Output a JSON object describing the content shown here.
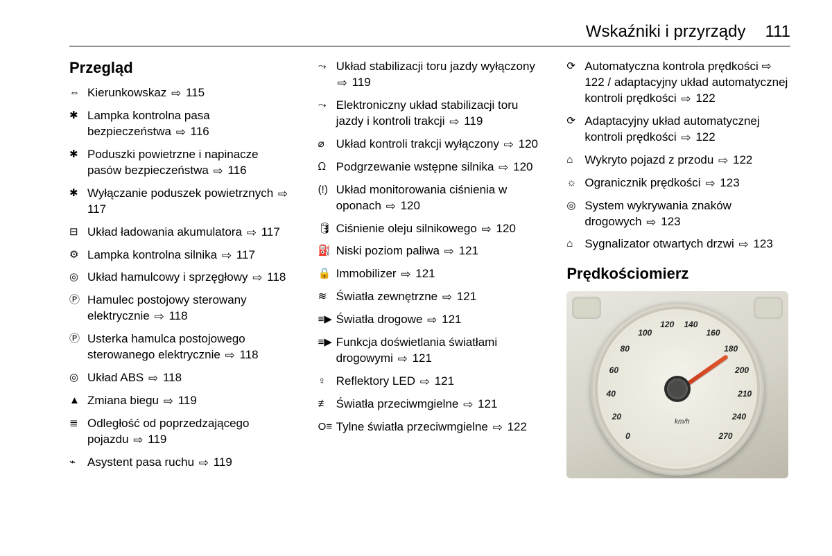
{
  "header": {
    "title": "Wskaźniki i przyrządy",
    "page": "111"
  },
  "arrow_glyph": "⇨",
  "col1": {
    "heading": "Przegląd",
    "items": [
      {
        "icon": "⇔",
        "text": "Kierunkowskaz",
        "page": "115"
      },
      {
        "icon": "✱",
        "text": "Lampka kontrolna pasa bezpieczeństwa",
        "page": "116"
      },
      {
        "icon": "✱",
        "text": "Poduszki powietrzne i napinacze pasów bezpieczeństwa",
        "page": "116"
      },
      {
        "icon": "✱",
        "text": "Wyłączanie poduszek powietrznych",
        "page": "117"
      },
      {
        "icon": "⊟",
        "text": "Układ ładowania akumulatora",
        "page": "117"
      },
      {
        "icon": "⚙",
        "text": "Lampka kontrolna silnika",
        "page": "117"
      },
      {
        "icon": "◎",
        "text": "Układ hamulcowy i sprzęgłowy",
        "page": "118"
      },
      {
        "icon": "Ⓟ",
        "text": "Hamulec postojowy sterowany elektrycznie",
        "page": "118"
      },
      {
        "icon": "Ⓟ",
        "text": "Usterka hamulca postojowego sterowanego elektrycznie",
        "page": "118"
      },
      {
        "icon": "◎",
        "text": "Układ ABS",
        "page": "118"
      },
      {
        "icon": "▲",
        "text": "Zmiana biegu",
        "page": "119"
      },
      {
        "icon": "≣",
        "text": "Odległość od poprzedzającego pojazdu",
        "page": "119"
      },
      {
        "icon": "⌁",
        "text": "Asystent pasa ruchu",
        "page": "119"
      }
    ]
  },
  "col2": {
    "items": [
      {
        "icon": "⤳",
        "text": "Układ stabilizacji toru jazdy wyłączony",
        "page": "119"
      },
      {
        "icon": "⤳",
        "text": "Elektroniczny układ stabilizacji toru jazdy i kontroli trakcji",
        "page": "119"
      },
      {
        "icon": "⌀",
        "text": "Układ kontroli trakcji wyłączony",
        "page": "120"
      },
      {
        "icon": "ᘯ",
        "text": "Podgrzewanie wstępne silnika",
        "page": "120"
      },
      {
        "icon": "(!)",
        "text": "Układ monitorowania ciśnienia w oponach",
        "page": "120"
      },
      {
        "icon": "🛢",
        "text": "Ciśnienie oleju silnikowego",
        "page": "120"
      },
      {
        "icon": "⛽",
        "text": "Niski poziom paliwa",
        "page": "121"
      },
      {
        "icon": "🔒",
        "text": "Immobilizer",
        "page": "121"
      },
      {
        "icon": "≋",
        "text": "Światła zewnętrzne",
        "page": "121"
      },
      {
        "icon": "≡▶",
        "text": "Światła drogowe",
        "page": "121"
      },
      {
        "icon": "≡▶",
        "text": "Funkcja doświetlania światłami drogowymi",
        "page": "121"
      },
      {
        "icon": "♀",
        "text": "Reflektory LED",
        "page": "121"
      },
      {
        "icon": "≢",
        "text": "Światła przeciwmgielne",
        "page": "121"
      },
      {
        "icon": "O≡",
        "text": "Tylne światła przeciwmgielne",
        "page": "122"
      }
    ]
  },
  "col3": {
    "items": [
      {
        "icon": "⟳",
        "text": "Automatyczna kontrola prędkości ⇨ 122 / adaptacyjny układ automatycznej kontroli prędkości",
        "page": "122"
      },
      {
        "icon": "⟳",
        "text": "Adaptacyjny układ automatycznej kontroli prędkości",
        "page": "122"
      },
      {
        "icon": "⌂",
        "text": "Wykryto pojazd z przodu",
        "page": "122"
      },
      {
        "icon": "☼",
        "text": "Ogranicznik prędkości",
        "page": "123"
      },
      {
        "icon": "◎",
        "text": "System wykrywania znaków drogowych",
        "page": "123"
      },
      {
        "icon": "⌂",
        "text": "Sygnalizator otwartych drzwi",
        "page": "123"
      }
    ],
    "heading2": "Prędkościomierz",
    "gauge": {
      "ticks": [
        "0",
        "20",
        "40",
        "60",
        "80",
        "100",
        "120",
        "140",
        "160",
        "180",
        "200",
        "210",
        "240",
        "270"
      ],
      "unit": "km/h"
    }
  }
}
